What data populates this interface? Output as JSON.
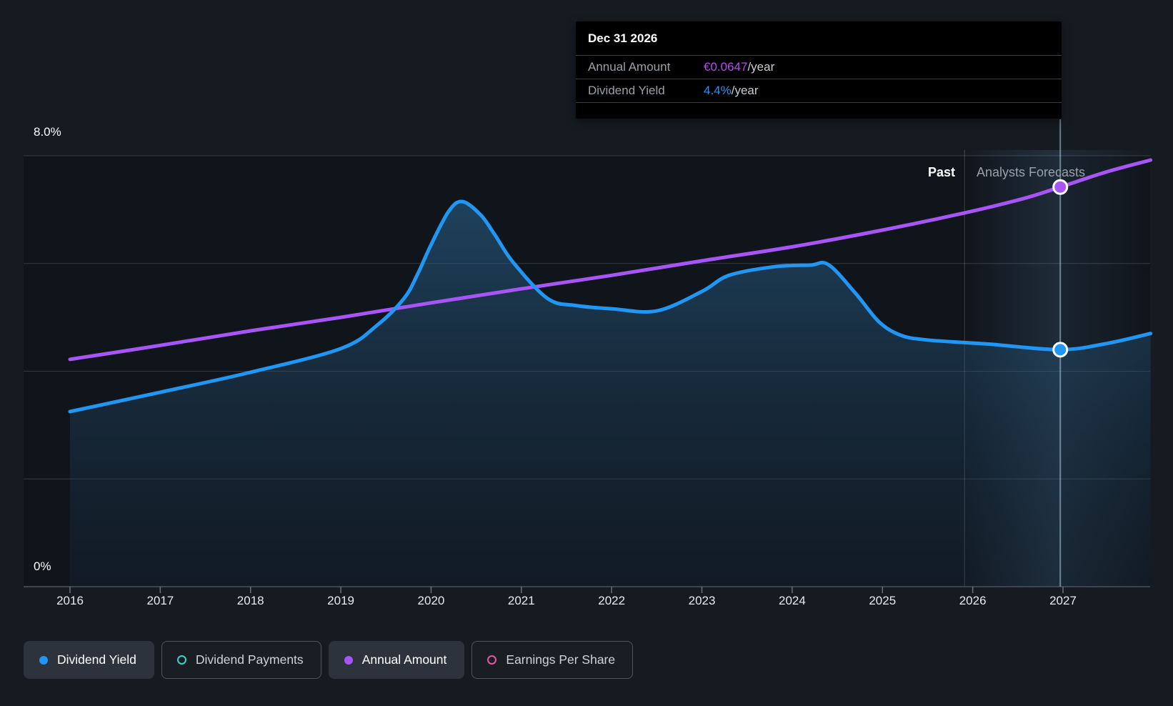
{
  "tooltip": {
    "date": "Dec 31 2026",
    "rows": [
      {
        "label": "Annual Amount",
        "value": "€0.0647",
        "suffix": "/year",
        "color": "#b44bf2"
      },
      {
        "label": "Dividend Yield",
        "value": "4.4%",
        "suffix": "/year",
        "color": "#2196f3"
      }
    ]
  },
  "annotations": {
    "past_label": "Past",
    "forecast_label": "Analysts Forecasts"
  },
  "legend": {
    "items": [
      {
        "label": "Dividend Yield",
        "color": "#2196f3",
        "filled": true,
        "active": true
      },
      {
        "label": "Dividend Payments",
        "color": "#40d0c5",
        "filled": false,
        "active": false
      },
      {
        "label": "Annual Amount",
        "color": "#a855f7",
        "filled": true,
        "active": true
      },
      {
        "label": "Earnings Per Share",
        "color": "#e05a9e",
        "filled": false,
        "active": false
      }
    ]
  },
  "chart_data": {
    "type": "line",
    "title": "Dividend yield history and forecast",
    "x_axis": {
      "ticks": [
        2016,
        2017,
        2018,
        2019,
        2020,
        2021,
        2022,
        2023,
        2024,
        2025,
        2026,
        2027
      ],
      "range": [
        2016.0,
        2027.97
      ]
    },
    "y_axis": {
      "top_label": "8.0%",
      "bottom_label": "0%",
      "range_percent": [
        0,
        8
      ],
      "gridline_percents": [
        8,
        6,
        4,
        2,
        0
      ],
      "grid_on": true
    },
    "past_forecast_split_year": 2025.91,
    "highlight_year": 2026.97,
    "highlight_date": "Dec 31 2026",
    "series": [
      {
        "name": "Dividend Yield",
        "unit": "percent",
        "color": "#2196f3",
        "style": "area",
        "points": [
          [
            2016.0,
            3.25
          ],
          [
            2017.0,
            3.61
          ],
          [
            2018.0,
            3.98
          ],
          [
            2019.0,
            4.42
          ],
          [
            2019.4,
            4.85
          ],
          [
            2019.7,
            5.35
          ],
          [
            2019.85,
            5.8
          ],
          [
            2020.0,
            6.35
          ],
          [
            2020.2,
            6.98
          ],
          [
            2020.35,
            7.15
          ],
          [
            2020.55,
            6.9
          ],
          [
            2020.7,
            6.55
          ],
          [
            2020.91,
            6.02
          ],
          [
            2021.29,
            5.35
          ],
          [
            2021.6,
            5.22
          ],
          [
            2022.0,
            5.16
          ],
          [
            2022.5,
            5.12
          ],
          [
            2023.0,
            5.48
          ],
          [
            2023.3,
            5.78
          ],
          [
            2023.8,
            5.94
          ],
          [
            2024.2,
            5.97
          ],
          [
            2024.4,
            5.98
          ],
          [
            2024.7,
            5.45
          ],
          [
            2024.96,
            4.92
          ],
          [
            2025.2,
            4.67
          ],
          [
            2025.5,
            4.58
          ],
          [
            2026.2,
            4.5
          ],
          [
            2026.97,
            4.4
          ],
          [
            2027.5,
            4.52
          ],
          [
            2027.97,
            4.7
          ]
        ]
      },
      {
        "name": "Annual Amount",
        "unit": "display_position_on_percent_scale",
        "labeled_value": {
          "date": "Dec 31 2026",
          "value": "€0.0647/year"
        },
        "color": "#a855f7",
        "style": "line",
        "points": [
          [
            2016.0,
            4.22
          ],
          [
            2017.0,
            4.48
          ],
          [
            2018.0,
            4.75
          ],
          [
            2019.0,
            5.0
          ],
          [
            2020.0,
            5.27
          ],
          [
            2021.0,
            5.53
          ],
          [
            2022.0,
            5.78
          ],
          [
            2023.0,
            6.05
          ],
          [
            2024.0,
            6.31
          ],
          [
            2025.0,
            6.62
          ],
          [
            2025.91,
            6.94
          ],
          [
            2026.55,
            7.2
          ],
          [
            2026.97,
            7.42
          ],
          [
            2027.5,
            7.71
          ],
          [
            2027.97,
            7.92
          ]
        ]
      }
    ],
    "markers": [
      {
        "series": "Annual Amount",
        "x": 2026.97,
        "y": 7.42,
        "color": "#a855f7"
      },
      {
        "series": "Dividend Yield",
        "x": 2026.97,
        "y": 4.4,
        "color": "#2196f3"
      }
    ],
    "legend_position": "bottom"
  },
  "colors": {
    "background": "#161b22",
    "plot_background": "#0c1117",
    "gridline": "rgba(255,255,255,0.16)",
    "axis_line": "#4d545e",
    "forecast_band": "rgba(110,165,210,0.16)",
    "crosshair": "rgba(160,195,220,0.6)",
    "area_top": "rgba(45,110,158,0.50)",
    "area_bottom": "rgba(26,52,74,0.18)"
  }
}
